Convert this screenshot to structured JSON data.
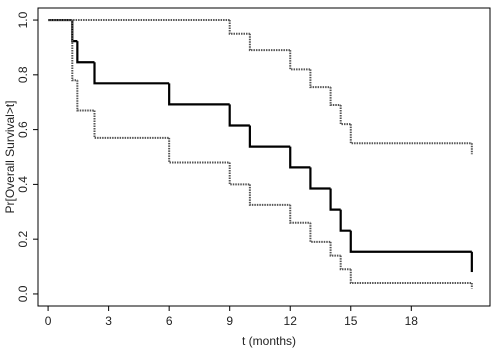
{
  "chart_data": {
    "type": "step",
    "x_label": "t (months)",
    "y_label": "Pr[Overall Survival>t]",
    "xlim": [
      -0.5,
      21.9
    ],
    "ylim": [
      -0.044,
      1.044
    ],
    "xticks": [
      0,
      3,
      6,
      9,
      12,
      15,
      18
    ],
    "yticks": [
      {
        "value": 0,
        "label": "0.0"
      },
      0.2,
      0.4,
      0.6,
      0.8,
      {
        "value": 1,
        "label": "1.0"
      }
    ],
    "series": [
      {
        "color": "#000000",
        "style": "solid",
        "x": [
          0,
          1.2,
          1.45,
          2.3,
          6,
          9,
          10,
          12,
          13,
          14,
          14.5,
          15,
          21
        ],
        "values": [
          1,
          0.923,
          0.846,
          0.769,
          0.692,
          0.615,
          0.538,
          0.462,
          0.385,
          0.308,
          0.231,
          0.154,
          0.08
        ]
      },
      {
        "color": "#555555",
        "style": "dotted",
        "x": [
          0,
          9,
          10,
          12,
          13,
          14,
          14.5,
          15,
          21
        ],
        "values": [
          1,
          0.95,
          0.89,
          0.82,
          0.755,
          0.69,
          0.62,
          0.55,
          0.51
        ]
      },
      {
        "color": "#555555",
        "style": "dotted",
        "x": [
          0,
          1.2,
          1.45,
          2.3,
          6,
          9,
          10,
          12,
          13,
          14,
          14.5,
          15,
          21
        ],
        "values": [
          1,
          0.78,
          0.67,
          0.57,
          0.48,
          0.4,
          0.325,
          0.26,
          0.19,
          0.14,
          0.09,
          0.04,
          0.02
        ]
      }
    ]
  }
}
